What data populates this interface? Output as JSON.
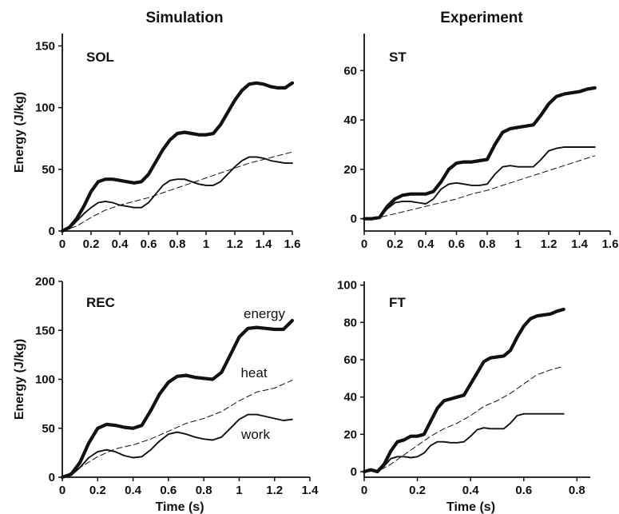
{
  "column_titles": [
    "Simulation",
    "Experiment"
  ],
  "chart_data": [
    {
      "type": "line",
      "panel": "SOL",
      "column": "Simulation",
      "xlabel": "",
      "ylabel": "Energy (J/kg)",
      "xlim": [
        0,
        1.6
      ],
      "ylim": [
        0,
        160
      ],
      "xticks": [
        0,
        0.2,
        0.4,
        0.6,
        0.8,
        1,
        1.2,
        1.4,
        1.6
      ],
      "xtick_labels": [
        "0",
        "0.2",
        "0.4",
        "0.6",
        "0.8",
        "1",
        "1.2",
        "1.4",
        "1.6"
      ],
      "yticks": [
        0,
        50,
        100,
        150
      ],
      "ytick_labels": [
        "0",
        "50",
        "100",
        "150"
      ],
      "annotations": [],
      "series": [
        {
          "style": "thick",
          "x": [
            0,
            0.05,
            0.1,
            0.15,
            0.2,
            0.25,
            0.3,
            0.35,
            0.4,
            0.45,
            0.5,
            0.55,
            0.6,
            0.65,
            0.7,
            0.75,
            0.8,
            0.85,
            0.9,
            0.95,
            1.0,
            1.05,
            1.1,
            1.15,
            1.2,
            1.25,
            1.3,
            1.35,
            1.4,
            1.45,
            1.5,
            1.55,
            1.6
          ],
          "values": [
            0,
            3,
            10,
            20,
            32,
            40,
            42,
            42,
            41,
            40,
            39,
            40,
            46,
            56,
            66,
            74,
            79,
            80,
            79,
            78,
            78,
            79,
            86,
            96,
            106,
            114,
            119,
            120,
            119,
            117,
            116,
            116,
            120
          ]
        },
        {
          "style": "thin",
          "x": [
            0,
            0.05,
            0.1,
            0.15,
            0.2,
            0.25,
            0.3,
            0.35,
            0.4,
            0.45,
            0.5,
            0.55,
            0.6,
            0.65,
            0.7,
            0.75,
            0.8,
            0.85,
            0.9,
            0.95,
            1.0,
            1.05,
            1.1,
            1.15,
            1.2,
            1.25,
            1.3,
            1.35,
            1.4,
            1.45,
            1.5,
            1.55,
            1.6
          ],
          "values": [
            0,
            2,
            8,
            14,
            19,
            23,
            24,
            23,
            21,
            20,
            19,
            19,
            23,
            30,
            37,
            41,
            42,
            42,
            40,
            38,
            37,
            37,
            40,
            46,
            52,
            57,
            60,
            60,
            59,
            57,
            56,
            55,
            55
          ]
        },
        {
          "style": "dashed",
          "x": [
            0,
            0.1,
            0.2,
            0.3,
            0.4,
            0.5,
            0.6,
            0.7,
            0.8,
            0.9,
            1.0,
            1.1,
            1.2,
            1.3,
            1.4,
            1.5,
            1.6
          ],
          "values": [
            0,
            4,
            11,
            17,
            21,
            24,
            27,
            31,
            35,
            39,
            43,
            47,
            51,
            55,
            58,
            61,
            64
          ]
        }
      ]
    },
    {
      "type": "line",
      "panel": "ST",
      "column": "Experiment",
      "xlabel": "",
      "ylabel": "",
      "xlim": [
        0,
        1.6
      ],
      "ylim": [
        -5,
        75
      ],
      "xticks": [
        0,
        0.2,
        0.4,
        0.6,
        0.8,
        1,
        1.2,
        1.4,
        1.6
      ],
      "xtick_labels": [
        "0",
        "0.2",
        "0.4",
        "0.6",
        "0.8",
        "1",
        "1.2",
        "1.4",
        "1.6"
      ],
      "yticks": [
        0,
        20,
        40,
        60
      ],
      "ytick_labels": [
        "0",
        "20",
        "40",
        "60"
      ],
      "annotations": [],
      "series": [
        {
          "style": "thick",
          "x": [
            0,
            0.05,
            0.1,
            0.15,
            0.2,
            0.25,
            0.3,
            0.35,
            0.4,
            0.45,
            0.5,
            0.55,
            0.6,
            0.65,
            0.7,
            0.75,
            0.8,
            0.85,
            0.9,
            0.95,
            1.0,
            1.05,
            1.1,
            1.15,
            1.2,
            1.25,
            1.3,
            1.35,
            1.4,
            1.45,
            1.5
          ],
          "values": [
            0,
            0,
            0.5,
            5,
            8,
            9.5,
            10,
            10,
            10,
            11,
            15,
            20,
            22.5,
            23,
            23,
            23.5,
            24,
            30,
            35,
            36.5,
            37,
            37.5,
            38,
            42,
            46.5,
            49.5,
            50.5,
            51,
            51.5,
            52.5,
            53
          ]
        },
        {
          "style": "thin",
          "x": [
            0,
            0.05,
            0.1,
            0.15,
            0.2,
            0.25,
            0.3,
            0.35,
            0.4,
            0.45,
            0.5,
            0.55,
            0.6,
            0.65,
            0.7,
            0.75,
            0.8,
            0.85,
            0.9,
            0.95,
            1.0,
            1.05,
            1.1,
            1.15,
            1.2,
            1.25,
            1.3,
            1.35,
            1.4,
            1.45,
            1.5
          ],
          "values": [
            0,
            0,
            0.5,
            4,
            6.5,
            7,
            7,
            6.5,
            6,
            8,
            12,
            14,
            14.5,
            14,
            13.5,
            13.5,
            14,
            18,
            21,
            21.5,
            21,
            21,
            21,
            24,
            27.5,
            28.5,
            29,
            29,
            29,
            29,
            29
          ]
        },
        {
          "style": "dashed",
          "x": [
            0,
            0.1,
            0.2,
            0.3,
            0.4,
            0.5,
            0.6,
            0.7,
            0.8,
            0.9,
            1.0,
            1.1,
            1.2,
            1.3,
            1.4,
            1.5
          ],
          "values": [
            0,
            0.5,
            2,
            3.5,
            5,
            6.5,
            8,
            10,
            11.5,
            13.5,
            15.5,
            17.5,
            19.5,
            21.5,
            23.5,
            25.5
          ]
        }
      ]
    },
    {
      "type": "line",
      "panel": "REC",
      "column": "Simulation",
      "xlabel": "Time (s)",
      "ylabel": "Energy (J/kg)",
      "xlim": [
        0,
        1.4
      ],
      "ylim": [
        0,
        200
      ],
      "xticks": [
        0,
        0.2,
        0.4,
        0.6,
        0.8,
        1,
        1.2,
        1.4
      ],
      "xtick_labels": [
        "0",
        "0.2",
        "0.4",
        "0.6",
        "0.8",
        "1",
        "1.2",
        "1.4"
      ],
      "yticks": [
        0,
        50,
        100,
        150,
        200
      ],
      "ytick_labels": [
        "0",
        "50",
        "100",
        "150",
        "200"
      ],
      "annotations": [
        "energy",
        "heat",
        "work"
      ],
      "series": [
        {
          "name": "energy",
          "style": "thick",
          "x": [
            0,
            0.05,
            0.1,
            0.15,
            0.2,
            0.25,
            0.3,
            0.35,
            0.4,
            0.45,
            0.5,
            0.55,
            0.6,
            0.65,
            0.7,
            0.75,
            0.8,
            0.85,
            0.9,
            0.95,
            1.0,
            1.05,
            1.1,
            1.15,
            1.2,
            1.25,
            1.3
          ],
          "values": [
            0,
            3,
            15,
            35,
            50,
            54,
            53,
            51,
            50,
            53,
            68,
            85,
            97,
            103,
            104,
            102,
            101,
            100,
            107,
            125,
            143,
            152,
            153,
            152,
            151,
            151,
            160
          ]
        },
        {
          "name": "heat",
          "style": "dashed",
          "x": [
            0,
            0.1,
            0.2,
            0.3,
            0.4,
            0.5,
            0.6,
            0.7,
            0.8,
            0.9,
            1.0,
            1.1,
            1.2,
            1.3
          ],
          "values": [
            0,
            10,
            21,
            29,
            33,
            39,
            47,
            55,
            60,
            67,
            78,
            87,
            91,
            99
          ]
        },
        {
          "name": "work",
          "style": "thin",
          "x": [
            0,
            0.05,
            0.1,
            0.15,
            0.2,
            0.25,
            0.3,
            0.35,
            0.4,
            0.45,
            0.5,
            0.55,
            0.6,
            0.65,
            0.7,
            0.75,
            0.8,
            0.85,
            0.9,
            0.95,
            1.0,
            1.05,
            1.1,
            1.15,
            1.2,
            1.25,
            1.3
          ],
          "values": [
            0,
            2,
            10,
            20,
            26,
            28,
            26,
            22,
            20,
            21,
            28,
            37,
            44,
            46,
            44,
            41,
            39,
            38,
            41,
            50,
            59,
            64,
            64,
            62,
            60,
            58,
            59
          ]
        }
      ]
    },
    {
      "type": "line",
      "panel": "FT",
      "column": "Experiment",
      "xlabel": "Time (s)",
      "ylabel": "",
      "xlim": [
        0,
        0.85
      ],
      "ylim": [
        -3,
        102
      ],
      "xticks": [
        0,
        0.2,
        0.4,
        0.6,
        0.8
      ],
      "xtick_labels": [
        "0",
        "0.2",
        "0.4",
        "0.6",
        "0.8"
      ],
      "yticks": [
        0,
        20,
        40,
        60,
        80,
        100
      ],
      "ytick_labels": [
        "0",
        "20",
        "40",
        "60",
        "80",
        "100"
      ],
      "annotations": [],
      "series": [
        {
          "style": "thick",
          "x": [
            0,
            0.025,
            0.05,
            0.075,
            0.1,
            0.125,
            0.15,
            0.175,
            0.2,
            0.225,
            0.25,
            0.275,
            0.3,
            0.325,
            0.35,
            0.375,
            0.4,
            0.425,
            0.45,
            0.475,
            0.5,
            0.525,
            0.55,
            0.575,
            0.6,
            0.625,
            0.65,
            0.675,
            0.7,
            0.725,
            0.75
          ],
          "values": [
            0,
            1,
            0,
            4,
            11,
            16,
            17,
            19,
            19,
            20,
            27,
            34,
            38,
            39,
            40,
            41,
            47,
            53,
            59,
            61,
            61.5,
            62,
            65,
            72,
            78,
            82,
            83.5,
            84,
            84.5,
            86,
            87
          ]
        },
        {
          "style": "dashed",
          "x": [
            0,
            0.05,
            0.1,
            0.15,
            0.2,
            0.25,
            0.3,
            0.35,
            0.4,
            0.45,
            0.5,
            0.55,
            0.6,
            0.65,
            0.7,
            0.75
          ],
          "values": [
            0,
            0,
            4,
            9,
            14,
            19,
            23,
            26,
            30,
            35,
            38,
            42,
            47,
            52,
            54.5,
            56.5
          ]
        },
        {
          "style": "thin",
          "x": [
            0,
            0.025,
            0.05,
            0.075,
            0.1,
            0.125,
            0.15,
            0.175,
            0.2,
            0.225,
            0.25,
            0.275,
            0.3,
            0.325,
            0.35,
            0.375,
            0.4,
            0.425,
            0.45,
            0.475,
            0.5,
            0.525,
            0.55,
            0.575,
            0.6,
            0.625,
            0.65,
            0.675,
            0.7,
            0.725,
            0.75
          ],
          "values": [
            0,
            1,
            0,
            3,
            7,
            8,
            8,
            7.5,
            8,
            10,
            14,
            16,
            16,
            15.5,
            15.5,
            16,
            19,
            22.5,
            23.5,
            23,
            23,
            23,
            26,
            30,
            31,
            31,
            31,
            31,
            31,
            31,
            31
          ]
        }
      ]
    }
  ]
}
